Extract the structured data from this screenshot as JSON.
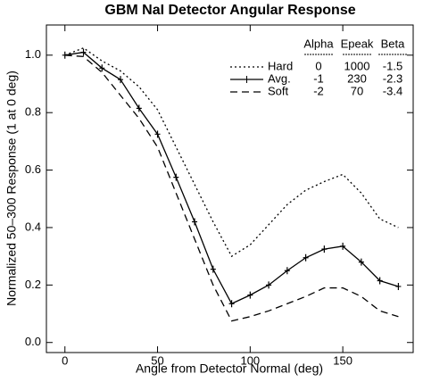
{
  "chart_data": {
    "type": "line",
    "title": "GBM NaI Detector Angular Response",
    "x_label": "Angle from Detector Normal (deg)",
    "y_label": "Normalized 50–300 Response (1 at 0 deg)",
    "x": [
      0,
      10,
      20,
      30,
      40,
      50,
      60,
      70,
      80,
      90,
      100,
      110,
      120,
      130,
      140,
      150,
      160,
      170,
      180
    ],
    "series": [
      {
        "name": "Hard",
        "color": "#000000",
        "dash": "dotted",
        "marker": "none",
        "values": [
          1.0,
          1.025,
          0.98,
          0.945,
          0.89,
          0.81,
          0.68,
          0.55,
          0.42,
          0.3,
          0.34,
          0.41,
          0.48,
          0.53,
          0.56,
          0.585,
          0.52,
          0.43,
          0.4
        ]
      },
      {
        "name": "Avg.",
        "color": "#000000",
        "dash": "solid",
        "marker": "plus",
        "values": [
          1.0,
          1.01,
          0.955,
          0.915,
          0.815,
          0.725,
          0.575,
          0.42,
          0.255,
          0.135,
          0.165,
          0.2,
          0.25,
          0.295,
          0.325,
          0.335,
          0.28,
          0.215,
          0.195
        ]
      },
      {
        "name": "Soft",
        "color": "#000000",
        "dash": "dashed",
        "marker": "none",
        "values": [
          1.0,
          0.995,
          0.94,
          0.86,
          0.78,
          0.68,
          0.52,
          0.36,
          0.2,
          0.075,
          0.09,
          0.11,
          0.135,
          0.16,
          0.19,
          0.19,
          0.16,
          0.11,
          0.09
        ]
      }
    ],
    "legend_table": {
      "columns": [
        "Alpha",
        "Epeak",
        "Beta"
      ],
      "rows": [
        [
          0,
          1000,
          -1.5
        ],
        [
          -1,
          230,
          -2.3
        ],
        [
          -2,
          70,
          -3.4
        ]
      ]
    },
    "xlim": [
      -10,
      188
    ],
    "xticks": [
      0,
      50,
      100,
      150
    ],
    "ylim": [
      -0.035,
      1.105
    ],
    "yticks": [
      {
        "value": 0,
        "label": "0.0"
      },
      0.2,
      0.4,
      0.6,
      0.8,
      {
        "value": 1,
        "label": "1.0"
      }
    ],
    "grid": false
  }
}
